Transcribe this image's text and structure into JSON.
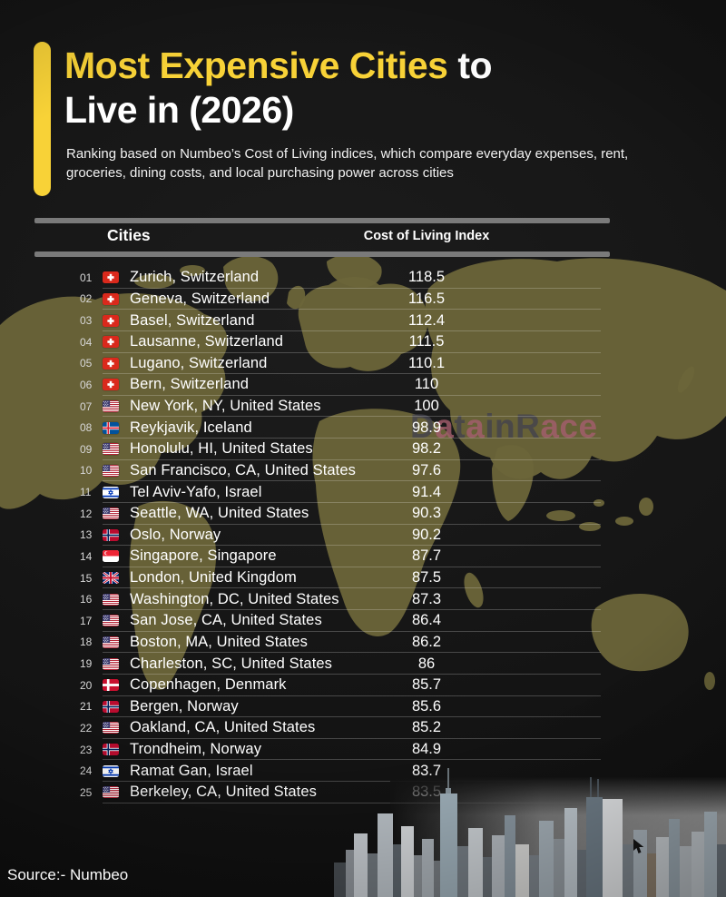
{
  "header": {
    "title_highlight": "Most Expensive Cities",
    "title_suffix": " to",
    "title_line2": "Live in (2026)",
    "subtitle": "Ranking based on Numbeo’s Cost of Living indices, which compare everyday expenses, rent, groceries, dining costs, and local purchasing power across cities"
  },
  "table": {
    "columns": [
      "Cities",
      "Cost of Living Index"
    ],
    "rows": [
      {
        "rank": "01",
        "flag": "ch",
        "city": "Zurich, Switzerland",
        "index": "118.5"
      },
      {
        "rank": "02",
        "flag": "ch",
        "city": "Geneva, Switzerland",
        "index": "116.5"
      },
      {
        "rank": "03",
        "flag": "ch",
        "city": "Basel, Switzerland",
        "index": "112.4"
      },
      {
        "rank": "04",
        "flag": "ch",
        "city": "Lausanne, Switzerland",
        "index": "111.5"
      },
      {
        "rank": "05",
        "flag": "ch",
        "city": "Lugano, Switzerland",
        "index": "110.1"
      },
      {
        "rank": "06",
        "flag": "ch",
        "city": "Bern, Switzerland",
        "index": "110"
      },
      {
        "rank": "07",
        "flag": "us",
        "city": "New York, NY, United States",
        "index": "100"
      },
      {
        "rank": "08",
        "flag": "is",
        "city": "Reykjavik, Iceland",
        "index": "98.9"
      },
      {
        "rank": "09",
        "flag": "us",
        "city": "Honolulu, HI, United States",
        "index": "98.2"
      },
      {
        "rank": "10",
        "flag": "us",
        "city": "San Francisco, CA, United States",
        "index": "97.6"
      },
      {
        "rank": "11",
        "flag": "il",
        "city": "Tel Aviv-Yafo, Israel",
        "index": "91.4"
      },
      {
        "rank": "12",
        "flag": "us",
        "city": "Seattle, WA, United States",
        "index": "90.3"
      },
      {
        "rank": "13",
        "flag": "no",
        "city": "Oslo, Norway",
        "index": "90.2"
      },
      {
        "rank": "14",
        "flag": "sg",
        "city": "Singapore, Singapore",
        "index": "87.7"
      },
      {
        "rank": "15",
        "flag": "gb",
        "city": "London, United Kingdom",
        "index": "87.5"
      },
      {
        "rank": "16",
        "flag": "us",
        "city": "Washington, DC, United States",
        "index": "87.3"
      },
      {
        "rank": "17",
        "flag": "us",
        "city": "San Jose, CA, United States",
        "index": "86.4"
      },
      {
        "rank": "18",
        "flag": "us",
        "city": "Boston, MA, United States",
        "index": "86.2"
      },
      {
        "rank": "19",
        "flag": "us",
        "city": "Charleston, SC, United States",
        "index": "86"
      },
      {
        "rank": "20",
        "flag": "dk",
        "city": "Copenhagen, Denmark",
        "index": "85.7"
      },
      {
        "rank": "21",
        "flag": "no",
        "city": "Bergen, Norway",
        "index": "85.6"
      },
      {
        "rank": "22",
        "flag": "us",
        "city": "Oakland, CA, United States",
        "index": "85.2"
      },
      {
        "rank": "23",
        "flag": "no",
        "city": "Trondheim, Norway",
        "index": "84.9"
      },
      {
        "rank": "24",
        "flag": "il",
        "city": "Ramat Gan, Israel",
        "index": "83.7"
      },
      {
        "rank": "25",
        "flag": "us",
        "city": "Berkeley, CA, United States",
        "index": "83.5"
      }
    ]
  },
  "watermark": {
    "text": "DatainRace",
    "pink_indices": [
      1,
      3,
      7,
      8,
      9
    ]
  },
  "source": "Source:- Numbeo",
  "colors": {
    "accent_yellow": "#f8d237",
    "map_olive": "#6b6539",
    "background": "#141414",
    "watermark_dark": "#43434d",
    "watermark_pink": "#a55e6e"
  },
  "chart_data": {
    "type": "table",
    "title": "Most Expensive Cities to Live in (2026)",
    "subtitle": "Ranking based on Numbeo’s Cost of Living indices, which compare everyday expenses, rent, groceries, dining costs, and local purchasing power across cities",
    "columns": [
      "Rank",
      "City",
      "Cost of Living Index"
    ],
    "rows": [
      [
        1,
        "Zurich, Switzerland",
        118.5
      ],
      [
        2,
        "Geneva, Switzerland",
        116.5
      ],
      [
        3,
        "Basel, Switzerland",
        112.4
      ],
      [
        4,
        "Lausanne, Switzerland",
        111.5
      ],
      [
        5,
        "Lugano, Switzerland",
        110.1
      ],
      [
        6,
        "Bern, Switzerland",
        110
      ],
      [
        7,
        "New York, NY, United States",
        100
      ],
      [
        8,
        "Reykjavik, Iceland",
        98.9
      ],
      [
        9,
        "Honolulu, HI, United States",
        98.2
      ],
      [
        10,
        "San Francisco, CA, United States",
        97.6
      ],
      [
        11,
        "Tel Aviv-Yafo, Israel",
        91.4
      ],
      [
        12,
        "Seattle, WA, United States",
        90.3
      ],
      [
        13,
        "Oslo, Norway",
        90.2
      ],
      [
        14,
        "Singapore, Singapore",
        87.7
      ],
      [
        15,
        "London, United Kingdom",
        87.5
      ],
      [
        16,
        "Washington, DC, United States",
        87.3
      ],
      [
        17,
        "San Jose, CA, United States",
        86.4
      ],
      [
        18,
        "Boston, MA, United States",
        86.2
      ],
      [
        19,
        "Charleston, SC, United States",
        86
      ],
      [
        20,
        "Copenhagen, Denmark",
        85.7
      ],
      [
        21,
        "Bergen, Norway",
        85.6
      ],
      [
        22,
        "Oakland, CA, United States",
        85.2
      ],
      [
        23,
        "Trondheim, Norway",
        84.9
      ],
      [
        24,
        "Ramat Gan, Israel",
        83.7
      ],
      [
        25,
        "Berkeley, CA, United States",
        83.5
      ]
    ],
    "source": "Numbeo"
  }
}
